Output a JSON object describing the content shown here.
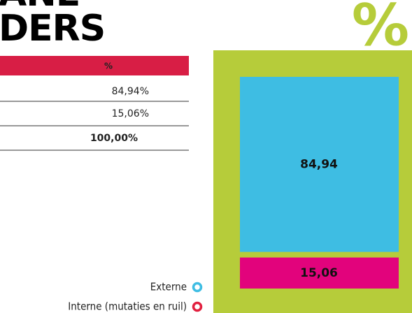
{
  "title": {
    "lines": [
      "ANE",
      "DERS"
    ]
  },
  "table": {
    "header": "%",
    "rows": [
      "84,94%",
      "15,06%",
      "100,00%"
    ]
  },
  "bar": {
    "symbol": "%",
    "segments": [
      {
        "name": "Externe",
        "value": 84.94,
        "label": "84,94",
        "color": "#3ebde3"
      },
      {
        "name": "Interne (mutaties en ruil)",
        "value": 15.06,
        "label": "15,06",
        "color": "#e2037c"
      }
    ]
  },
  "legend_colors": [
    "#3ebde3",
    "#e2203f"
  ]
}
